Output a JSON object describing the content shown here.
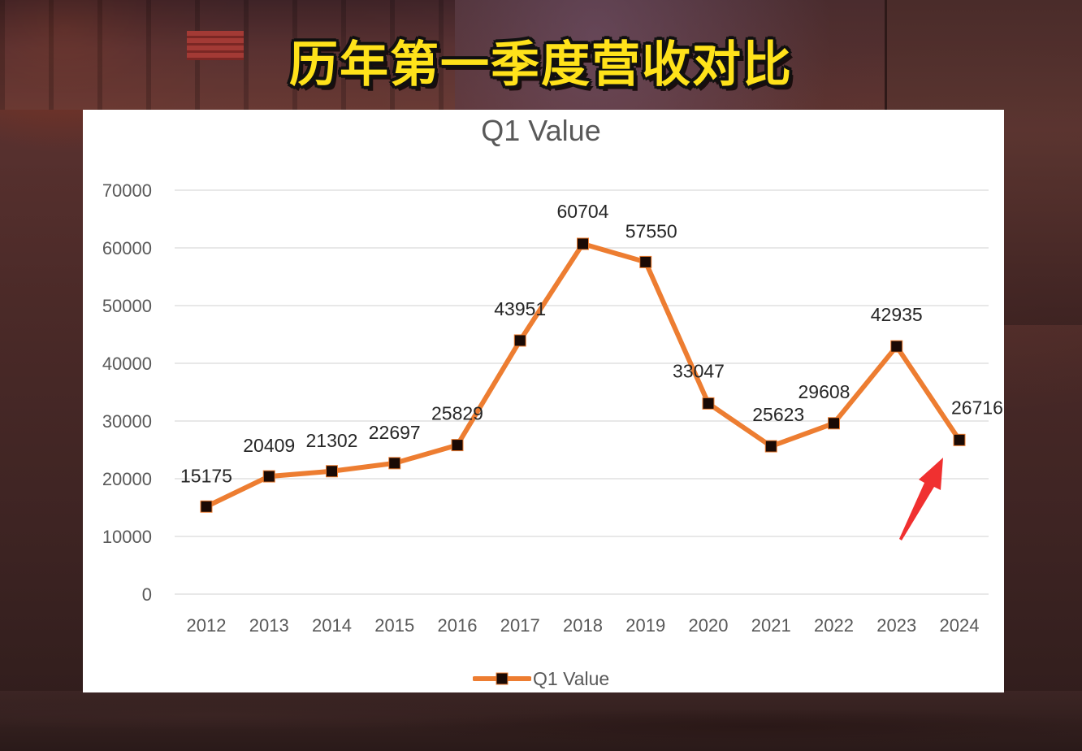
{
  "page": {
    "headline": "历年第一季度营收对比"
  },
  "chart_data": {
    "type": "line",
    "title": "Q1 Value",
    "xlabel": "",
    "ylabel": "",
    "categories": [
      "2012",
      "2013",
      "2014",
      "2015",
      "2016",
      "2017",
      "2018",
      "2019",
      "2020",
      "2021",
      "2022",
      "2023",
      "2024"
    ],
    "series": [
      {
        "name": "Q1 Value",
        "values": [
          15175,
          20409,
          21302,
          22697,
          25829,
          43951,
          60704,
          57550,
          33047,
          25623,
          29608,
          42935,
          26716
        ],
        "color": "#ED7D31",
        "marker": "square",
        "marker_color": "#1a0a05",
        "data_labels": true
      }
    ],
    "ylim": [
      0,
      70000
    ],
    "yticks": [
      0,
      10000,
      20000,
      30000,
      40000,
      50000,
      60000,
      70000
    ],
    "ytick_labels": [
      "0",
      "10000",
      "20000",
      "30000",
      "40000",
      "50000",
      "60000",
      "70000"
    ],
    "grid": true,
    "legend_position": "bottom",
    "annotations": [
      {
        "type": "arrow",
        "color": "#F03030",
        "points_to": "2024"
      }
    ]
  },
  "colors": {
    "line": "#ED7D31",
    "marker": "#1a0a05",
    "grid": "#D9D9D9",
    "axis_text": "#595959",
    "label_text": "#262626",
    "headline": "#FFE21A",
    "arrow": "#F03030"
  }
}
